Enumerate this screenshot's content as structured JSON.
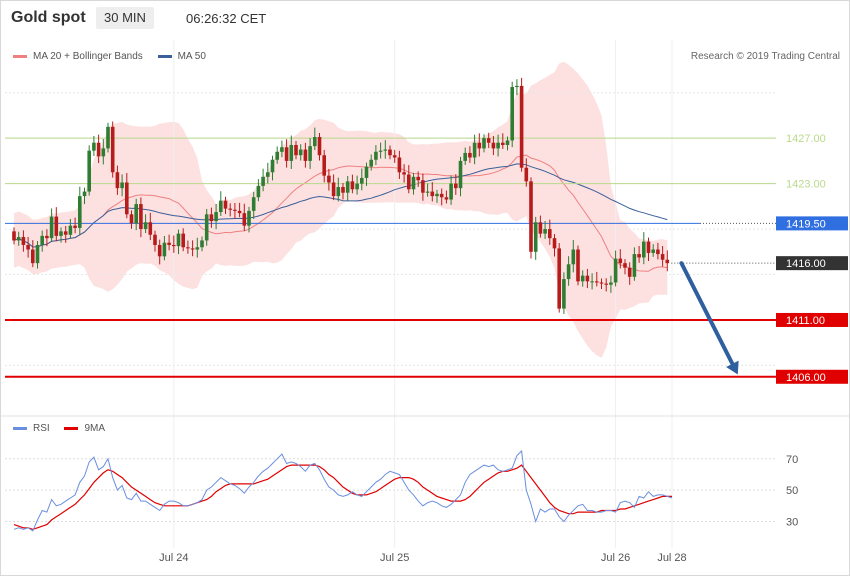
{
  "header": {
    "title": "Gold spot",
    "timeframe": "30 MIN",
    "time": "06:26:32 CET"
  },
  "legend_main": [
    {
      "name": "MA 20 + Bollinger Bands",
      "color": "#f08080"
    },
    {
      "name": "MA 50",
      "color": "#3a5f9a"
    }
  ],
  "copyright": "Research © 2019 Trading Central",
  "legend_rsi": [
    {
      "name": "RSI",
      "color": "#6a8fe0"
    },
    {
      "name": "9MA",
      "color": "#e00000"
    }
  ],
  "colors": {
    "up": "#2e7d32",
    "down": "#b71c1c",
    "band_fill": "#fde0e0",
    "ma20": "#f08080",
    "ma50": "#3a5f9a",
    "resistance": "#b9d98a",
    "pivot": "#2f6fe0",
    "support": "#e00000",
    "arrow": "#2f5f9f",
    "rsi": "#6a8fe0",
    "rsi_ma": "#e00000"
  },
  "chart_data": [
    {
      "type": "candlestick",
      "title": "Gold spot",
      "ylim": [
        1402.9,
        1433.0
      ],
      "x_ticks": [
        {
          "label": "Jul 24",
          "index": 34
        },
        {
          "label": "Jul 25",
          "index": 81
        },
        {
          "label": "Jul 26",
          "index": 128
        },
        {
          "label": "Jul 28",
          "index": 140
        }
      ],
      "levels": [
        {
          "value": 1427.0,
          "label": "1427.00",
          "kind": "resistance"
        },
        {
          "value": 1423.0,
          "label": "1423.00",
          "kind": "resistance"
        },
        {
          "value": 1419.5,
          "label": "1419.50",
          "kind": "pivot"
        },
        {
          "value": 1416.0,
          "label": "1416.00",
          "kind": "current"
        },
        {
          "value": 1411.0,
          "label": "1411.00",
          "kind": "support"
        },
        {
          "value": 1406.0,
          "label": "1406.00",
          "kind": "support"
        }
      ],
      "forecast_arrow": {
        "from": [
          142,
          1416.0
        ],
        "to": [
          154,
          1406.2
        ]
      },
      "candles": [
        [
          1418.8,
          1418.0
        ],
        [
          1418.0,
          1418.3
        ],
        [
          1418.3,
          1417.6
        ],
        [
          1417.6,
          1417.2
        ],
        [
          1417.2,
          1416.0
        ],
        [
          1416.0,
          1417.6
        ],
        [
          1417.6,
          1418.4
        ],
        [
          1418.4,
          1418.2
        ],
        [
          1418.2,
          1420.1
        ],
        [
          1420.1,
          1418.4
        ],
        [
          1418.4,
          1418.8
        ],
        [
          1418.8,
          1418.5
        ],
        [
          1418.5,
          1419.3
        ],
        [
          1419.3,
          1419.1
        ],
        [
          1419.1,
          1421.9
        ],
        [
          1421.9,
          1422.3
        ],
        [
          1422.3,
          1425.9
        ],
        [
          1425.9,
          1426.6
        ],
        [
          1426.6,
          1425.4
        ],
        [
          1425.4,
          1426.1
        ],
        [
          1426.1,
          1428.0
        ],
        [
          1428.0,
          1424.0
        ],
        [
          1424.0,
          1422.6
        ],
        [
          1422.6,
          1423.1
        ],
        [
          1423.1,
          1420.3
        ],
        [
          1420.3,
          1419.5
        ],
        [
          1419.5,
          1421.2
        ],
        [
          1421.2,
          1419.0
        ],
        [
          1419.0,
          1419.6
        ],
        [
          1419.6,
          1418.5
        ],
        [
          1418.5,
          1417.6
        ],
        [
          1417.6,
          1416.6
        ],
        [
          1416.6,
          1417.8
        ],
        [
          1417.8,
          1417.6
        ],
        [
          1417.6,
          1417.5
        ],
        [
          1417.5,
          1418.6
        ],
        [
          1418.6,
          1417.4
        ],
        [
          1417.4,
          1417.3
        ],
        [
          1417.3,
          1417.2
        ],
        [
          1417.2,
          1417.4
        ],
        [
          1417.4,
          1418.0
        ],
        [
          1418.0,
          1420.3
        ],
        [
          1420.3,
          1419.7
        ],
        [
          1419.7,
          1420.5
        ],
        [
          1420.5,
          1421.5
        ],
        [
          1421.5,
          1420.8
        ],
        [
          1420.8,
          1420.7
        ],
        [
          1420.7,
          1420.6
        ],
        [
          1420.6,
          1420.4
        ],
        [
          1420.4,
          1419.3
        ],
        [
          1419.3,
          1420.6
        ],
        [
          1420.6,
          1421.8
        ],
        [
          1421.8,
          1422.8
        ],
        [
          1422.8,
          1423.6
        ],
        [
          1423.6,
          1424.0
        ],
        [
          1424.0,
          1425.1
        ],
        [
          1425.1,
          1425.8
        ],
        [
          1425.8,
          1426.2
        ],
        [
          1426.2,
          1425.0
        ],
        [
          1425.0,
          1426.4
        ],
        [
          1426.4,
          1425.5
        ],
        [
          1425.5,
          1426.0
        ],
        [
          1426.0,
          1425.0
        ],
        [
          1425.0,
          1426.3
        ],
        [
          1426.3,
          1427.1
        ],
        [
          1427.1,
          1425.5
        ],
        [
          1425.5,
          1423.7
        ],
        [
          1423.7,
          1423.1
        ],
        [
          1423.1,
          1421.9
        ],
        [
          1421.9,
          1422.7
        ],
        [
          1422.7,
          1422.2
        ],
        [
          1422.2,
          1423.2
        ],
        [
          1423.2,
          1422.5
        ],
        [
          1422.5,
          1423.0
        ],
        [
          1423.0,
          1423.5
        ],
        [
          1423.5,
          1424.5
        ],
        [
          1424.5,
          1425.1
        ],
        [
          1425.1,
          1425.8
        ],
        [
          1425.8,
          1425.9
        ],
        [
          1425.9,
          1426.0
        ],
        [
          1426.0,
          1425.5
        ],
        [
          1425.5,
          1425.3
        ],
        [
          1425.3,
          1424.0
        ],
        [
          1424.0,
          1423.8
        ],
        [
          1423.8,
          1422.5
        ],
        [
          1422.5,
          1423.6
        ],
        [
          1423.6,
          1423.3
        ],
        [
          1423.3,
          1422.2
        ],
        [
          1422.2,
          1422.3
        ],
        [
          1422.3,
          1421.9
        ],
        [
          1421.9,
          1422.1
        ],
        [
          1422.1,
          1421.8
        ],
        [
          1421.8,
          1421.6
        ],
        [
          1421.6,
          1423.0
        ],
        [
          1423.0,
          1422.6
        ],
        [
          1422.6,
          1425.0
        ],
        [
          1425.0,
          1425.7
        ],
        [
          1425.7,
          1425.3
        ],
        [
          1425.3,
          1426.6
        ],
        [
          1426.6,
          1426.1
        ],
        [
          1426.1,
          1427.0
        ],
        [
          1427.0,
          1426.6
        ],
        [
          1426.6,
          1426.1
        ],
        [
          1426.1,
          1426.6
        ],
        [
          1426.6,
          1426.4
        ],
        [
          1426.4,
          1426.8
        ],
        [
          1426.8,
          1431.5
        ],
        [
          1431.5,
          1431.6
        ],
        [
          1431.6,
          1424.4
        ],
        [
          1424.4,
          1423.2
        ],
        [
          1423.2,
          1417.0
        ],
        [
          1417.0,
          1419.6
        ],
        [
          1419.6,
          1418.6
        ],
        [
          1418.6,
          1419.0
        ],
        [
          1419.0,
          1418.2
        ],
        [
          1418.2,
          1417.3
        ],
        [
          1417.3,
          1412.0
        ],
        [
          1412.0,
          1414.6
        ],
        [
          1414.6,
          1415.9
        ],
        [
          1415.9,
          1417.2
        ],
        [
          1417.2,
          1414.4
        ],
        [
          1414.4,
          1414.9
        ],
        [
          1414.9,
          1414.4
        ],
        [
          1414.4,
          1414.4
        ],
        [
          1414.4,
          1414.3
        ],
        [
          1414.3,
          1414.2
        ],
        [
          1414.2,
          1414.1
        ],
        [
          1414.1,
          1414.3
        ],
        [
          1414.3,
          1416.4
        ],
        [
          1416.4,
          1416.0
        ],
        [
          1416.0,
          1415.6
        ],
        [
          1415.6,
          1414.8
        ],
        [
          1414.8,
          1416.8
        ],
        [
          1416.8,
          1416.5
        ],
        [
          1416.5,
          1417.9
        ],
        [
          1417.9,
          1416.9
        ],
        [
          1416.9,
          1417.2
        ],
        [
          1417.2,
          1416.8
        ],
        [
          1416.8,
          1416.3
        ],
        [
          1416.3,
          1416.0
        ]
      ]
    },
    {
      "type": "line",
      "title": "RSI",
      "ylim": [
        15,
        82
      ],
      "y_ticks": [
        30,
        50,
        70
      ],
      "series": [
        {
          "name": "RSI",
          "values": [
            25,
            26,
            25,
            26,
            24,
            31,
            37,
            36,
            44,
            40,
            41,
            43,
            45,
            47,
            55,
            59,
            68,
            71,
            63,
            65,
            70,
            58,
            50,
            53,
            45,
            44,
            48,
            43,
            43,
            41,
            39,
            37,
            41,
            43,
            43,
            42,
            40,
            40,
            41,
            42,
            44,
            50,
            52,
            55,
            58,
            56,
            54,
            53,
            51,
            48,
            52,
            55,
            59,
            62,
            64,
            67,
            70,
            73,
            67,
            68,
            67,
            65,
            62,
            66,
            67,
            63,
            57,
            52,
            50,
            47,
            46,
            47,
            49,
            47,
            46,
            49,
            52,
            55,
            57,
            60,
            62,
            61,
            60,
            55,
            50,
            47,
            43,
            40,
            42,
            43,
            42,
            40,
            39,
            41,
            44,
            47,
            55,
            60,
            62,
            64,
            66,
            65,
            66,
            63,
            62,
            63,
            64,
            72,
            75,
            50,
            41,
            30,
            38,
            36,
            38,
            38,
            33,
            30,
            34,
            37,
            40,
            41,
            37,
            37,
            36,
            36,
            37,
            37,
            36,
            42,
            43,
            42,
            39,
            46,
            45,
            49,
            46,
            47,
            47,
            46,
            45
          ]
        },
        {
          "name": "9MA",
          "values": [
            28,
            27,
            26,
            26,
            25,
            26,
            27,
            28,
            31,
            33,
            35,
            37,
            39,
            41,
            44,
            47,
            51,
            55,
            58,
            61,
            63,
            62,
            60,
            58,
            55,
            52,
            50,
            48,
            46,
            44,
            42,
            41,
            40,
            40,
            40,
            40,
            40,
            40,
            41,
            42,
            43,
            44,
            46,
            49,
            51,
            53,
            54,
            54,
            54,
            54,
            54,
            54,
            55,
            56,
            57,
            59,
            61,
            63,
            65,
            66,
            66,
            66,
            66,
            66,
            66,
            65,
            63,
            60,
            58,
            55,
            52,
            50,
            48,
            47,
            47,
            47,
            48,
            49,
            51,
            53,
            55,
            57,
            58,
            58,
            58,
            57,
            55,
            52,
            50,
            48,
            46,
            45,
            44,
            43,
            43,
            43,
            44,
            46,
            49,
            52,
            55,
            57,
            59,
            61,
            62,
            62,
            63,
            64,
            66,
            62,
            58,
            54,
            50,
            46,
            42,
            39,
            37,
            36,
            35,
            35,
            36,
            36,
            36,
            36,
            36,
            37,
            37,
            37,
            37,
            38,
            38,
            39,
            40,
            41,
            42,
            43,
            44,
            45,
            46,
            46,
            46
          ]
        }
      ]
    }
  ]
}
